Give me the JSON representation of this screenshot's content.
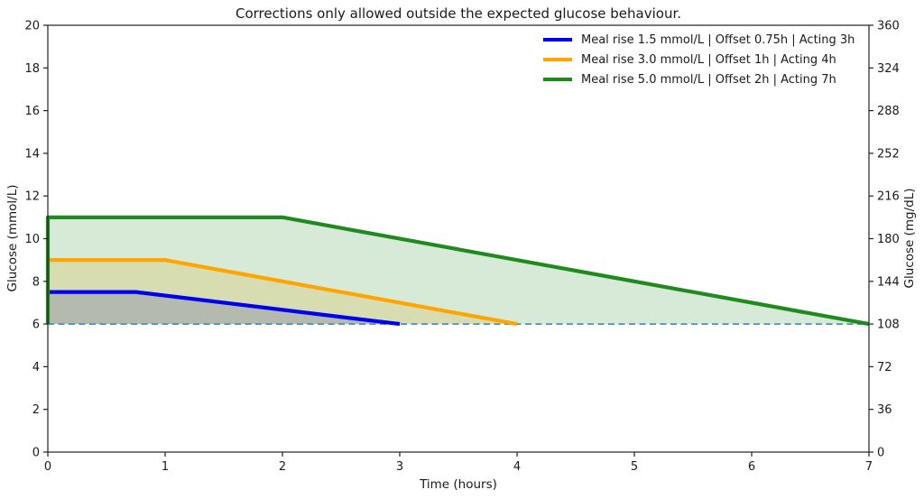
{
  "figure": {
    "background": "#ffffff",
    "spine_color": "#222222"
  },
  "chart_data": {
    "type": "line",
    "title": "Corrections only allowed outside the expected glucose behaviour.",
    "xlabel": "Time (hours)",
    "ylabel_left": "Glucose (mmol/L)",
    "ylabel_right": "Glucose (mg/dL)",
    "xlim": [
      0,
      7
    ],
    "ylim_left": [
      0,
      20
    ],
    "ylim_right": [
      0,
      360
    ],
    "x_ticks": [
      "0",
      "1",
      "2",
      "3",
      "4",
      "5",
      "6",
      "7"
    ],
    "y_ticks_left": [
      "0",
      "2",
      "4",
      "6",
      "8",
      "10",
      "12",
      "14",
      "16",
      "18",
      "20"
    ],
    "y_ticks_right": [
      "0",
      "36",
      "72",
      "108",
      "144",
      "180",
      "216",
      "252",
      "288",
      "324",
      "360"
    ],
    "grid": false,
    "legend_position": "upper right",
    "baseline": {
      "y": 6,
      "color": "#4d8fc0",
      "style": "dashed"
    },
    "series": [
      {
        "name": "Meal rise 1.5 mmol/L | Offset 0.75h | Acting 3h",
        "color": "#0000ee",
        "fill_alpha": 0.2,
        "points": [
          [
            0,
            7.5
          ],
          [
            0.75,
            7.5
          ],
          [
            3,
            6
          ]
        ]
      },
      {
        "name": "Meal rise 3.0 mmol/L | Offset 1h | Acting 4h",
        "color": "#ffa500",
        "fill_alpha": 0.18,
        "points": [
          [
            0,
            9
          ],
          [
            1,
            9
          ],
          [
            4,
            6
          ]
        ]
      },
      {
        "name": "Meal rise 5.0 mmol/L | Offset 2h | Acting 7h",
        "color": "#1f8b1f",
        "fill_alpha": 0.18,
        "points": [
          [
            0,
            6
          ],
          [
            0,
            11
          ],
          [
            2,
            11
          ],
          [
            7,
            6
          ]
        ]
      }
    ]
  }
}
